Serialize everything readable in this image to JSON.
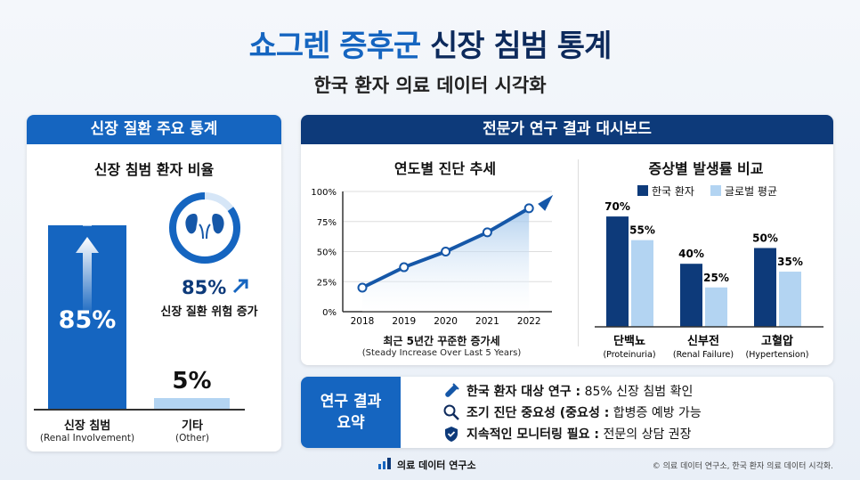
{
  "header": {
    "title_part1": "쇼그렌 증후군",
    "title_part2": "신장 침범 통계",
    "subtitle": "한국 환자 의료 데이터 시각화"
  },
  "left_panel": {
    "header": "신장 질환 주요 통계",
    "title": "신장 침범 환자 비율",
    "donut": {
      "icon": "kidney-icon",
      "value": "85%",
      "caption": "신장 질환 위험 증가",
      "arrow_icon": "trend-up-arrow-icon"
    }
  },
  "right_panel": {
    "header": "전문가 연구 결과 대시보드"
  },
  "summary": {
    "label": "연구 결과 요약",
    "items": [
      {
        "icon": "test-tube-icon",
        "bold": "한국 환자 대상 연구 :",
        "text": " 85% 신장 침범 확인"
      },
      {
        "icon": "search-icon",
        "bold": "조기 진단 중요성 (중요성 :",
        "text": " 합병증 예방 가능"
      },
      {
        "icon": "shield-check-icon",
        "bold": "지속적인 모니터링 필요 :",
        "text": " 전문의 상담 권장"
      }
    ]
  },
  "footer": {
    "logo_text": "의료 데이터 연구소",
    "copyright": "© 의료 데이터 연구소, 한국 환자 의료 데이터 시각화."
  },
  "colors": {
    "primary": "#1565c0",
    "navy": "#0d3a7a",
    "light": "#b3d4f2"
  },
  "chart_data": [
    {
      "type": "bar",
      "title": "신장 침범 환자 비율",
      "categories": [
        "신장 침범",
        "기타"
      ],
      "category_sublabels": [
        "(Renal Involvement)",
        "(Other)"
      ],
      "values": [
        85,
        5
      ],
      "value_labels": [
        "85%",
        "5%"
      ],
      "ylim": [
        0,
        100
      ]
    },
    {
      "type": "line",
      "title": "연도별 진단 추세",
      "x": [
        "2018",
        "2019",
        "2020",
        "2021",
        "2022"
      ],
      "values": [
        20,
        37,
        50,
        66,
        86
      ],
      "yticks": [
        "0%",
        "25%",
        "50%",
        "75%",
        "100%"
      ],
      "ylim": [
        0,
        100
      ],
      "grid": true,
      "xlabel": "최근 5년간 꾸준한 증가세",
      "xlabel_sub": "(Steady Increase Over Last 5 Years)"
    },
    {
      "type": "bar",
      "title": "증상별 발생률 비교",
      "categories": [
        "단백뇨",
        "신부전",
        "고혈압"
      ],
      "category_sublabels": [
        "(Proteinuria)",
        "(Renal Failure)",
        "(Hypertension)"
      ],
      "series": [
        {
          "name": "한국 환자",
          "values": [
            70,
            40,
            50
          ],
          "color": "#0d3a7a"
        },
        {
          "name": "글로벌 평균",
          "values": [
            55,
            25,
            35
          ],
          "color": "#b3d4f2"
        }
      ],
      "legend": "top"
    }
  ]
}
